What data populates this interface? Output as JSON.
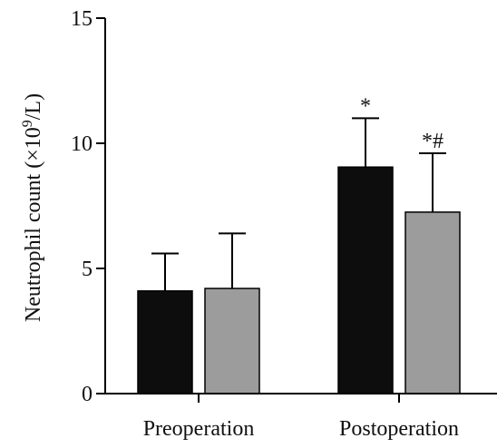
{
  "chart_data": {
    "type": "bar",
    "title": "",
    "xlabel": "",
    "ylabel": "Neutrophil count (×10",
    "ylabel_sup": "9",
    "ylabel_end": "/L)",
    "ylim": [
      0,
      15
    ],
    "yticks": [
      "0",
      "5",
      "10",
      "15"
    ],
    "categories": [
      "Preoperation",
      "Postoperation"
    ],
    "grid": false,
    "legend": "none",
    "series": [
      {
        "color": "#0d0d0d",
        "values": [
          4.1,
          9.05
        ],
        "error_upper": [
          5.6,
          11.0
        ],
        "annotations": [
          "",
          "*"
        ]
      },
      {
        "color": "#9c9c9c",
        "values": [
          4.2,
          7.25
        ],
        "error_upper": [
          6.4,
          9.6
        ],
        "annotations": [
          "",
          "*#"
        ]
      }
    ]
  }
}
